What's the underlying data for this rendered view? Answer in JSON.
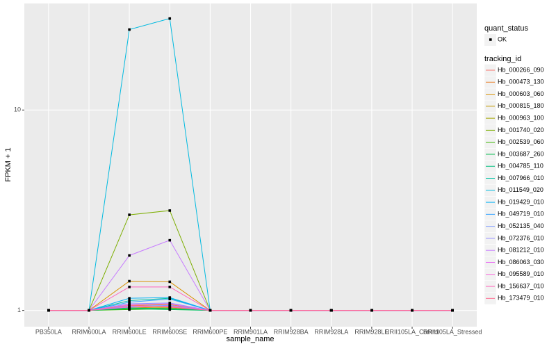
{
  "chart_data": {
    "type": "line",
    "log_y": true,
    "grid": true,
    "x_label": "sample_name",
    "y_label": "FPKM + 1",
    "categories": [
      "PB350LA",
      "RRIM600LA",
      "RRIM600LE",
      "RRIM600SE",
      "RRIM600PE",
      "RRIM901LA",
      "RRIM928BA",
      "RRIM928LA",
      "RRIM928LE",
      "RRII105LA_Control",
      "RRII105LA_Stressed"
    ],
    "ylim": [
      0.83,
      34
    ],
    "yticks": [
      1,
      10
    ],
    "shape_legend": {
      "title": "quant_status",
      "labels": [
        "OK"
      ]
    },
    "color_legend_title": "tracking_id",
    "series": [
      {
        "name": "Hb_000266_090",
        "color": "#F8766D",
        "values": [
          1,
          1,
          1.04,
          1.05,
          1,
          1,
          1,
          1,
          1,
          1,
          1
        ]
      },
      {
        "name": "Hb_000473_130",
        "color": "#EA8331",
        "values": [
          1,
          1,
          1.06,
          1.07,
          1,
          1,
          1,
          1,
          1,
          1,
          1
        ]
      },
      {
        "name": "Hb_000603_060",
        "color": "#D89000",
        "values": [
          1,
          1,
          1.4,
          1.39,
          1,
          1,
          1,
          1,
          1,
          1,
          1
        ]
      },
      {
        "name": "Hb_000815_180",
        "color": "#C09B00",
        "values": [
          1,
          1,
          1.03,
          1.04,
          1,
          1,
          1,
          1,
          1,
          1,
          1
        ]
      },
      {
        "name": "Hb_000963_100",
        "color": "#A3A500",
        "values": [
          1,
          1,
          1.02,
          1.03,
          1,
          1,
          1,
          1,
          1,
          1,
          1
        ]
      },
      {
        "name": "Hb_001740_020",
        "color": "#7CAE00",
        "values": [
          1,
          1,
          3.0,
          3.15,
          1,
          1,
          1,
          1,
          1,
          1,
          1
        ]
      },
      {
        "name": "Hb_002539_060",
        "color": "#39B600",
        "values": [
          1,
          1,
          1.01,
          1.02,
          1,
          1,
          1,
          1,
          1,
          1,
          1
        ]
      },
      {
        "name": "Hb_003687_260",
        "color": "#00BB4E",
        "values": [
          1,
          1,
          1.02,
          1.01,
          1,
          1,
          1,
          1,
          1,
          1,
          1
        ]
      },
      {
        "name": "Hb_004785_110",
        "color": "#00BF7D",
        "values": [
          1,
          1,
          1.03,
          1.02,
          1,
          1,
          1,
          1,
          1,
          1,
          1
        ]
      },
      {
        "name": "Hb_007966_010",
        "color": "#00C1A3",
        "values": [
          1,
          1,
          1.12,
          1.15,
          1,
          1,
          1,
          1,
          1,
          1,
          1
        ]
      },
      {
        "name": "Hb_011549_020",
        "color": "#00BAE0",
        "values": [
          1,
          1,
          25.2,
          28.6,
          1,
          1,
          1,
          1,
          1,
          1,
          1
        ]
      },
      {
        "name": "Hb_019429_010",
        "color": "#00B0F6",
        "values": [
          1,
          1,
          1.15,
          1.16,
          1,
          1,
          1,
          1,
          1,
          1,
          1
        ]
      },
      {
        "name": "Hb_049719_010",
        "color": "#35A2FF",
        "values": [
          1,
          1,
          1.1,
          1.14,
          1,
          1,
          1,
          1,
          1,
          1,
          1
        ]
      },
      {
        "name": "Hb_052135_040",
        "color": "#7E9CFF",
        "values": [
          1,
          1,
          1.05,
          1.06,
          1,
          1,
          1,
          1,
          1,
          1,
          1
        ]
      },
      {
        "name": "Hb_072376_010",
        "color": "#9590FF",
        "values": [
          1,
          1,
          1.08,
          1.09,
          1,
          1,
          1,
          1,
          1,
          1,
          1
        ]
      },
      {
        "name": "Hb_081212_010",
        "color": "#C77CFF",
        "values": [
          1,
          1,
          1.88,
          2.24,
          1,
          1,
          1,
          1,
          1,
          1,
          1
        ]
      },
      {
        "name": "Hb_086063_030",
        "color": "#E76BF3",
        "values": [
          1,
          1,
          1.07,
          1.08,
          1,
          1,
          1,
          1,
          1,
          1,
          1
        ]
      },
      {
        "name": "Hb_095589_010",
        "color": "#FA62DB",
        "values": [
          1,
          1,
          1.04,
          1.05,
          1,
          1,
          1,
          1,
          1,
          1,
          1
        ]
      },
      {
        "name": "Hb_156637_010",
        "color": "#FF62BC",
        "values": [
          1,
          1,
          1.31,
          1.31,
          1,
          1,
          1,
          1,
          1,
          1,
          1
        ]
      },
      {
        "name": "Hb_173479_010",
        "color": "#FF6C91",
        "values": [
          1,
          1,
          1.06,
          1.04,
          1,
          1,
          1,
          1,
          1,
          1,
          1
        ]
      }
    ]
  }
}
